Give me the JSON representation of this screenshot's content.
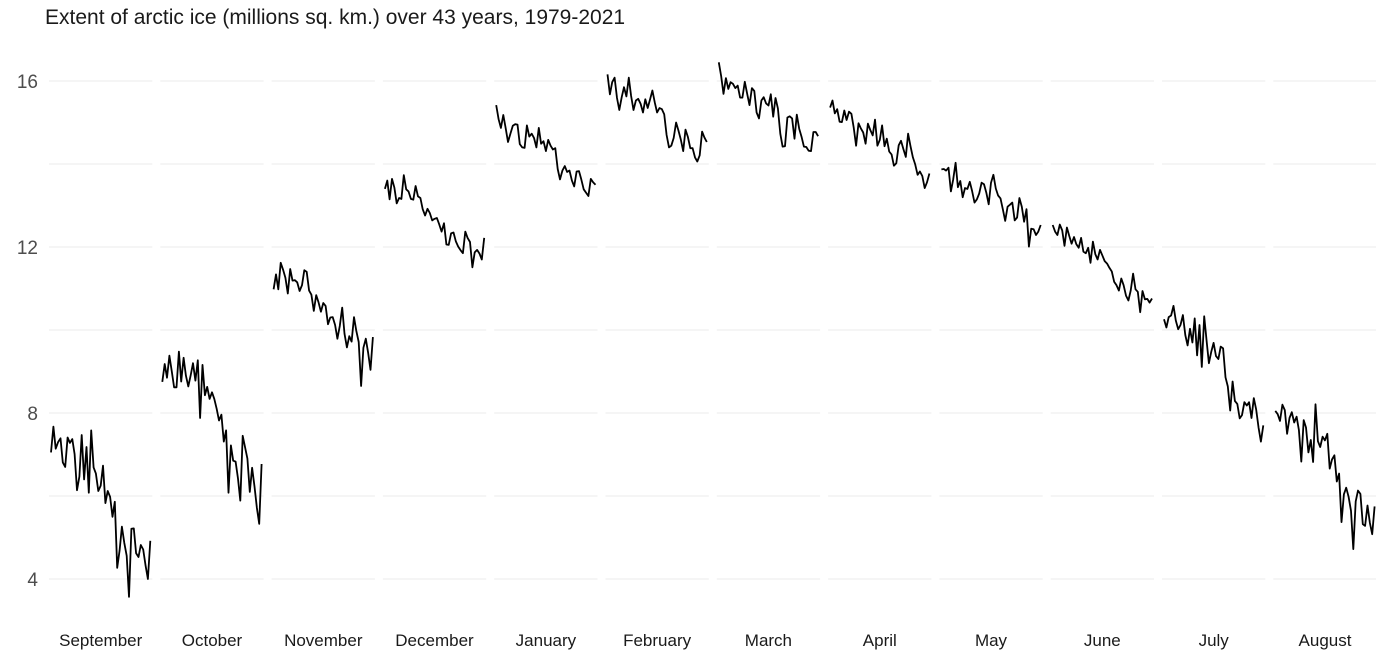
{
  "chart_data": {
    "type": "line",
    "title": "Extent of arctic ice (millions sq. km.) over 43 years, 1979-2021",
    "xlabel": "",
    "ylabel": "",
    "facet_by": "month",
    "x": [
      1979,
      1980,
      1981,
      1982,
      1983,
      1984,
      1985,
      1986,
      1987,
      1988,
      1989,
      1990,
      1991,
      1992,
      1993,
      1994,
      1995,
      1996,
      1997,
      1998,
      1999,
      2000,
      2001,
      2002,
      2003,
      2004,
      2005,
      2006,
      2007,
      2008,
      2009,
      2010,
      2011,
      2012,
      2013,
      2014,
      2015,
      2016,
      2017,
      2018,
      2019,
      2020,
      2021
    ],
    "ylim": [
      3.6,
      16.5
    ],
    "yticks": [
      4,
      8,
      12,
      16
    ],
    "grid": true,
    "legend": "none",
    "series": [
      {
        "name": "September",
        "values": [
          7.05,
          7.67,
          7.14,
          7.3,
          7.39,
          6.81,
          6.7,
          7.41,
          7.28,
          7.37,
          7.01,
          6.14,
          6.47,
          7.47,
          6.4,
          7.18,
          6.08,
          7.58,
          6.69,
          6.54,
          6.12,
          6.25,
          6.73,
          5.83,
          6.12,
          5.98,
          5.5,
          5.86,
          4.27,
          4.69,
          5.26,
          4.87,
          4.56,
          3.57,
          5.21,
          5.22,
          4.62,
          4.53,
          4.82,
          4.71,
          4.32,
          4.0,
          4.92
        ]
      },
      {
        "name": "October",
        "values": [
          8.75,
          9.18,
          8.85,
          9.38,
          9.0,
          8.62,
          8.62,
          9.48,
          8.76,
          9.33,
          8.9,
          8.64,
          8.91,
          9.2,
          8.78,
          9.27,
          7.88,
          9.16,
          8.43,
          8.63,
          8.34,
          8.5,
          8.34,
          8.1,
          7.82,
          7.96,
          7.31,
          7.58,
          6.08,
          7.22,
          6.85,
          6.83,
          6.42,
          5.89,
          7.45,
          7.17,
          6.9,
          6.1,
          6.68,
          6.23,
          5.71,
          5.33,
          6.77
        ]
      },
      {
        "name": "November",
        "values": [
          10.98,
          11.34,
          10.98,
          11.62,
          11.45,
          11.26,
          10.88,
          11.47,
          11.19,
          11.2,
          11.15,
          10.94,
          11.08,
          11.44,
          11.4,
          10.95,
          10.85,
          10.46,
          10.84,
          10.67,
          10.44,
          10.65,
          10.58,
          10.14,
          10.3,
          10.31,
          10.12,
          9.79,
          10.1,
          10.54,
          9.91,
          9.58,
          9.85,
          9.72,
          10.31,
          9.98,
          9.71,
          8.65,
          9.57,
          9.79,
          9.44,
          9.04,
          9.83
        ]
      },
      {
        "name": "December",
        "values": [
          13.4,
          13.6,
          13.15,
          13.64,
          13.43,
          13.05,
          13.18,
          13.16,
          13.73,
          13.39,
          13.34,
          13.16,
          13.14,
          13.47,
          13.22,
          13.18,
          12.91,
          12.76,
          12.92,
          12.82,
          12.64,
          12.68,
          12.7,
          12.54,
          12.37,
          12.57,
          12.06,
          12.05,
          12.33,
          12.35,
          12.14,
          12.01,
          11.92,
          11.85,
          12.37,
          12.22,
          12.12,
          11.51,
          11.87,
          11.93,
          11.84,
          11.7,
          12.22
        ]
      },
      {
        "name": "January",
        "values": [
          15.42,
          15.08,
          14.87,
          15.18,
          14.86,
          14.53,
          14.73,
          14.92,
          14.96,
          14.95,
          14.48,
          14.4,
          14.39,
          14.93,
          14.66,
          14.73,
          14.63,
          14.4,
          14.87,
          14.49,
          14.55,
          14.31,
          14.58,
          14.44,
          14.35,
          14.38,
          13.88,
          13.63,
          13.84,
          13.95,
          13.81,
          13.84,
          13.6,
          13.46,
          13.82,
          13.83,
          13.63,
          13.39,
          13.31,
          13.23,
          13.64,
          13.56,
          13.5
        ]
      },
      {
        "name": "February",
        "values": [
          16.16,
          15.68,
          15.97,
          16.08,
          15.59,
          15.3,
          15.61,
          15.85,
          15.63,
          16.08,
          15.64,
          15.3,
          15.53,
          15.57,
          15.45,
          15.24,
          15.56,
          15.35,
          15.56,
          15.77,
          15.48,
          15.24,
          15.35,
          15.32,
          15.2,
          14.7,
          14.4,
          14.44,
          14.63,
          15.0,
          14.81,
          14.59,
          14.31,
          14.83,
          14.65,
          14.38,
          14.38,
          14.16,
          14.06,
          14.21,
          14.78,
          14.64,
          14.53
        ]
      },
      {
        "name": "March",
        "values": [
          16.45,
          16.11,
          15.69,
          16.07,
          15.81,
          15.97,
          15.93,
          15.83,
          15.89,
          15.6,
          15.6,
          15.98,
          15.69,
          15.42,
          15.83,
          15.76,
          15.24,
          15.1,
          15.53,
          15.61,
          15.46,
          15.41,
          15.68,
          15.14,
          15.59,
          15.34,
          14.73,
          14.42,
          14.43,
          15.12,
          15.15,
          15.1,
          14.61,
          15.19,
          14.85,
          14.66,
          14.42,
          14.41,
          14.32,
          14.31,
          14.77,
          14.77,
          14.67
        ]
      },
      {
        "name": "April",
        "values": [
          15.36,
          15.53,
          15.22,
          15.32,
          15.02,
          15.01,
          15.29,
          15.06,
          15.26,
          15.21,
          14.88,
          14.44,
          14.98,
          14.86,
          14.76,
          14.49,
          14.97,
          14.82,
          14.69,
          15.07,
          14.44,
          14.58,
          14.93,
          14.43,
          14.61,
          14.3,
          14.23,
          13.96,
          14.02,
          14.45,
          14.56,
          14.36,
          14.17,
          14.73,
          14.43,
          14.16,
          13.99,
          13.74,
          13.82,
          13.71,
          13.42,
          13.56,
          13.77
        ]
      },
      {
        "name": "May",
        "values": [
          13.87,
          13.88,
          13.84,
          13.91,
          13.34,
          13.63,
          14.03,
          13.44,
          13.59,
          13.2,
          13.42,
          13.4,
          13.57,
          13.35,
          13.07,
          13.15,
          13.29,
          13.55,
          13.51,
          13.31,
          13.03,
          13.55,
          13.74,
          13.41,
          13.24,
          13.17,
          12.9,
          12.63,
          12.97,
          13.02,
          13.07,
          12.64,
          12.71,
          13.18,
          12.97,
          12.61,
          12.91,
          12.01,
          12.44,
          12.43,
          12.29,
          12.37,
          12.53
        ]
      },
      {
        "name": "June",
        "values": [
          12.53,
          12.37,
          12.29,
          12.54,
          12.4,
          12.03,
          12.47,
          12.27,
          12.08,
          12.24,
          12.07,
          11.98,
          12.22,
          11.89,
          11.85,
          11.98,
          11.62,
          12.13,
          11.83,
          11.7,
          11.93,
          11.8,
          11.66,
          11.6,
          11.5,
          11.41,
          11.16,
          11.08,
          10.95,
          11.24,
          11.08,
          10.83,
          10.71,
          10.95,
          11.36,
          10.98,
          10.92,
          10.43,
          10.94,
          10.74,
          10.75,
          10.66,
          10.76
        ]
      },
      {
        "name": "July",
        "values": [
          10.26,
          10.06,
          10.31,
          10.35,
          10.58,
          10.23,
          10.02,
          10.12,
          10.36,
          9.88,
          9.63,
          10.03,
          9.7,
          10.28,
          9.39,
          10.12,
          9.11,
          10.33,
          9.74,
          9.2,
          9.48,
          9.69,
          9.37,
          9.3,
          9.6,
          9.56,
          8.86,
          8.64,
          8.06,
          8.76,
          8.29,
          8.22,
          7.87,
          7.95,
          8.26,
          8.18,
          8.26,
          7.88,
          8.36,
          8.08,
          7.64,
          7.31,
          7.7
        ]
      },
      {
        "name": "August",
        "values": [
          8.05,
          7.97,
          7.81,
          8.2,
          8.07,
          7.5,
          7.88,
          8.02,
          7.77,
          7.91,
          7.59,
          6.83,
          7.83,
          7.65,
          7.05,
          7.35,
          6.82,
          8.21,
          7.32,
          7.18,
          7.43,
          7.34,
          7.5,
          6.66,
          6.88,
          6.98,
          6.35,
          6.54,
          5.37,
          6.04,
          6.2,
          5.98,
          5.64,
          4.72,
          5.87,
          6.13,
          6.05,
          5.32,
          5.28,
          5.77,
          5.35,
          5.08,
          5.75
        ]
      }
    ]
  }
}
